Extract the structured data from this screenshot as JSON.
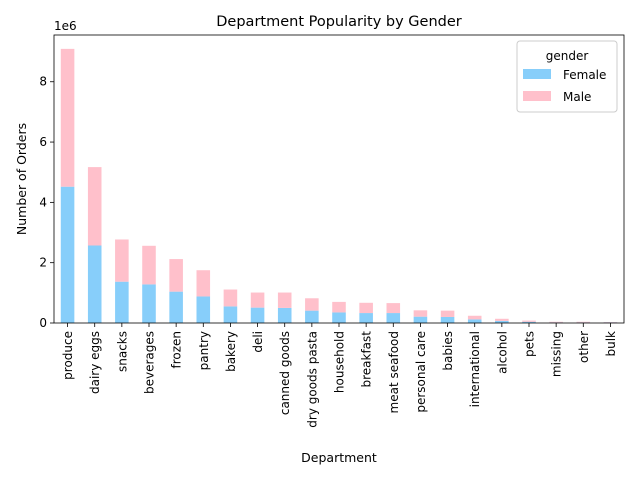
{
  "chart_data": {
    "type": "bar",
    "stacked": true,
    "title": "Department Popularity by Gender",
    "xlabel": "Department",
    "ylabel": "Number of Orders",
    "y_offset_label": "1e6",
    "ylim": [
      0,
      9.55
    ],
    "y_ticks": [
      0,
      2,
      4,
      6,
      8
    ],
    "y_tick_labels": [
      "0",
      "2",
      "4",
      "6",
      "8"
    ],
    "grid": false,
    "legend": {
      "title": "gender",
      "placement": "top-right"
    },
    "categories": [
      "produce",
      "dairy eggs",
      "snacks",
      "beverages",
      "frozen",
      "pantry",
      "bakery",
      "deli",
      "canned goods",
      "dry goods pasta",
      "household",
      "breakfast",
      "meat seafood",
      "personal care",
      "babies",
      "international",
      "alcohol",
      "pets",
      "missing",
      "other",
      "bulk"
    ],
    "series": [
      {
        "name": "Female",
        "color": "#87cefa",
        "values": [
          4.52,
          2.57,
          1.37,
          1.28,
          1.04,
          0.88,
          0.55,
          0.51,
          0.5,
          0.41,
          0.35,
          0.33,
          0.33,
          0.21,
          0.2,
          0.12,
          0.07,
          0.04,
          0.02,
          0.02,
          0.02
        ]
      },
      {
        "name": "Male",
        "color": "#ffc0cb",
        "values": [
          4.57,
          2.6,
          1.4,
          1.28,
          1.08,
          0.87,
          0.56,
          0.5,
          0.51,
          0.41,
          0.35,
          0.34,
          0.33,
          0.21,
          0.21,
          0.12,
          0.07,
          0.04,
          0.02,
          0.02,
          0.01
        ]
      }
    ]
  }
}
